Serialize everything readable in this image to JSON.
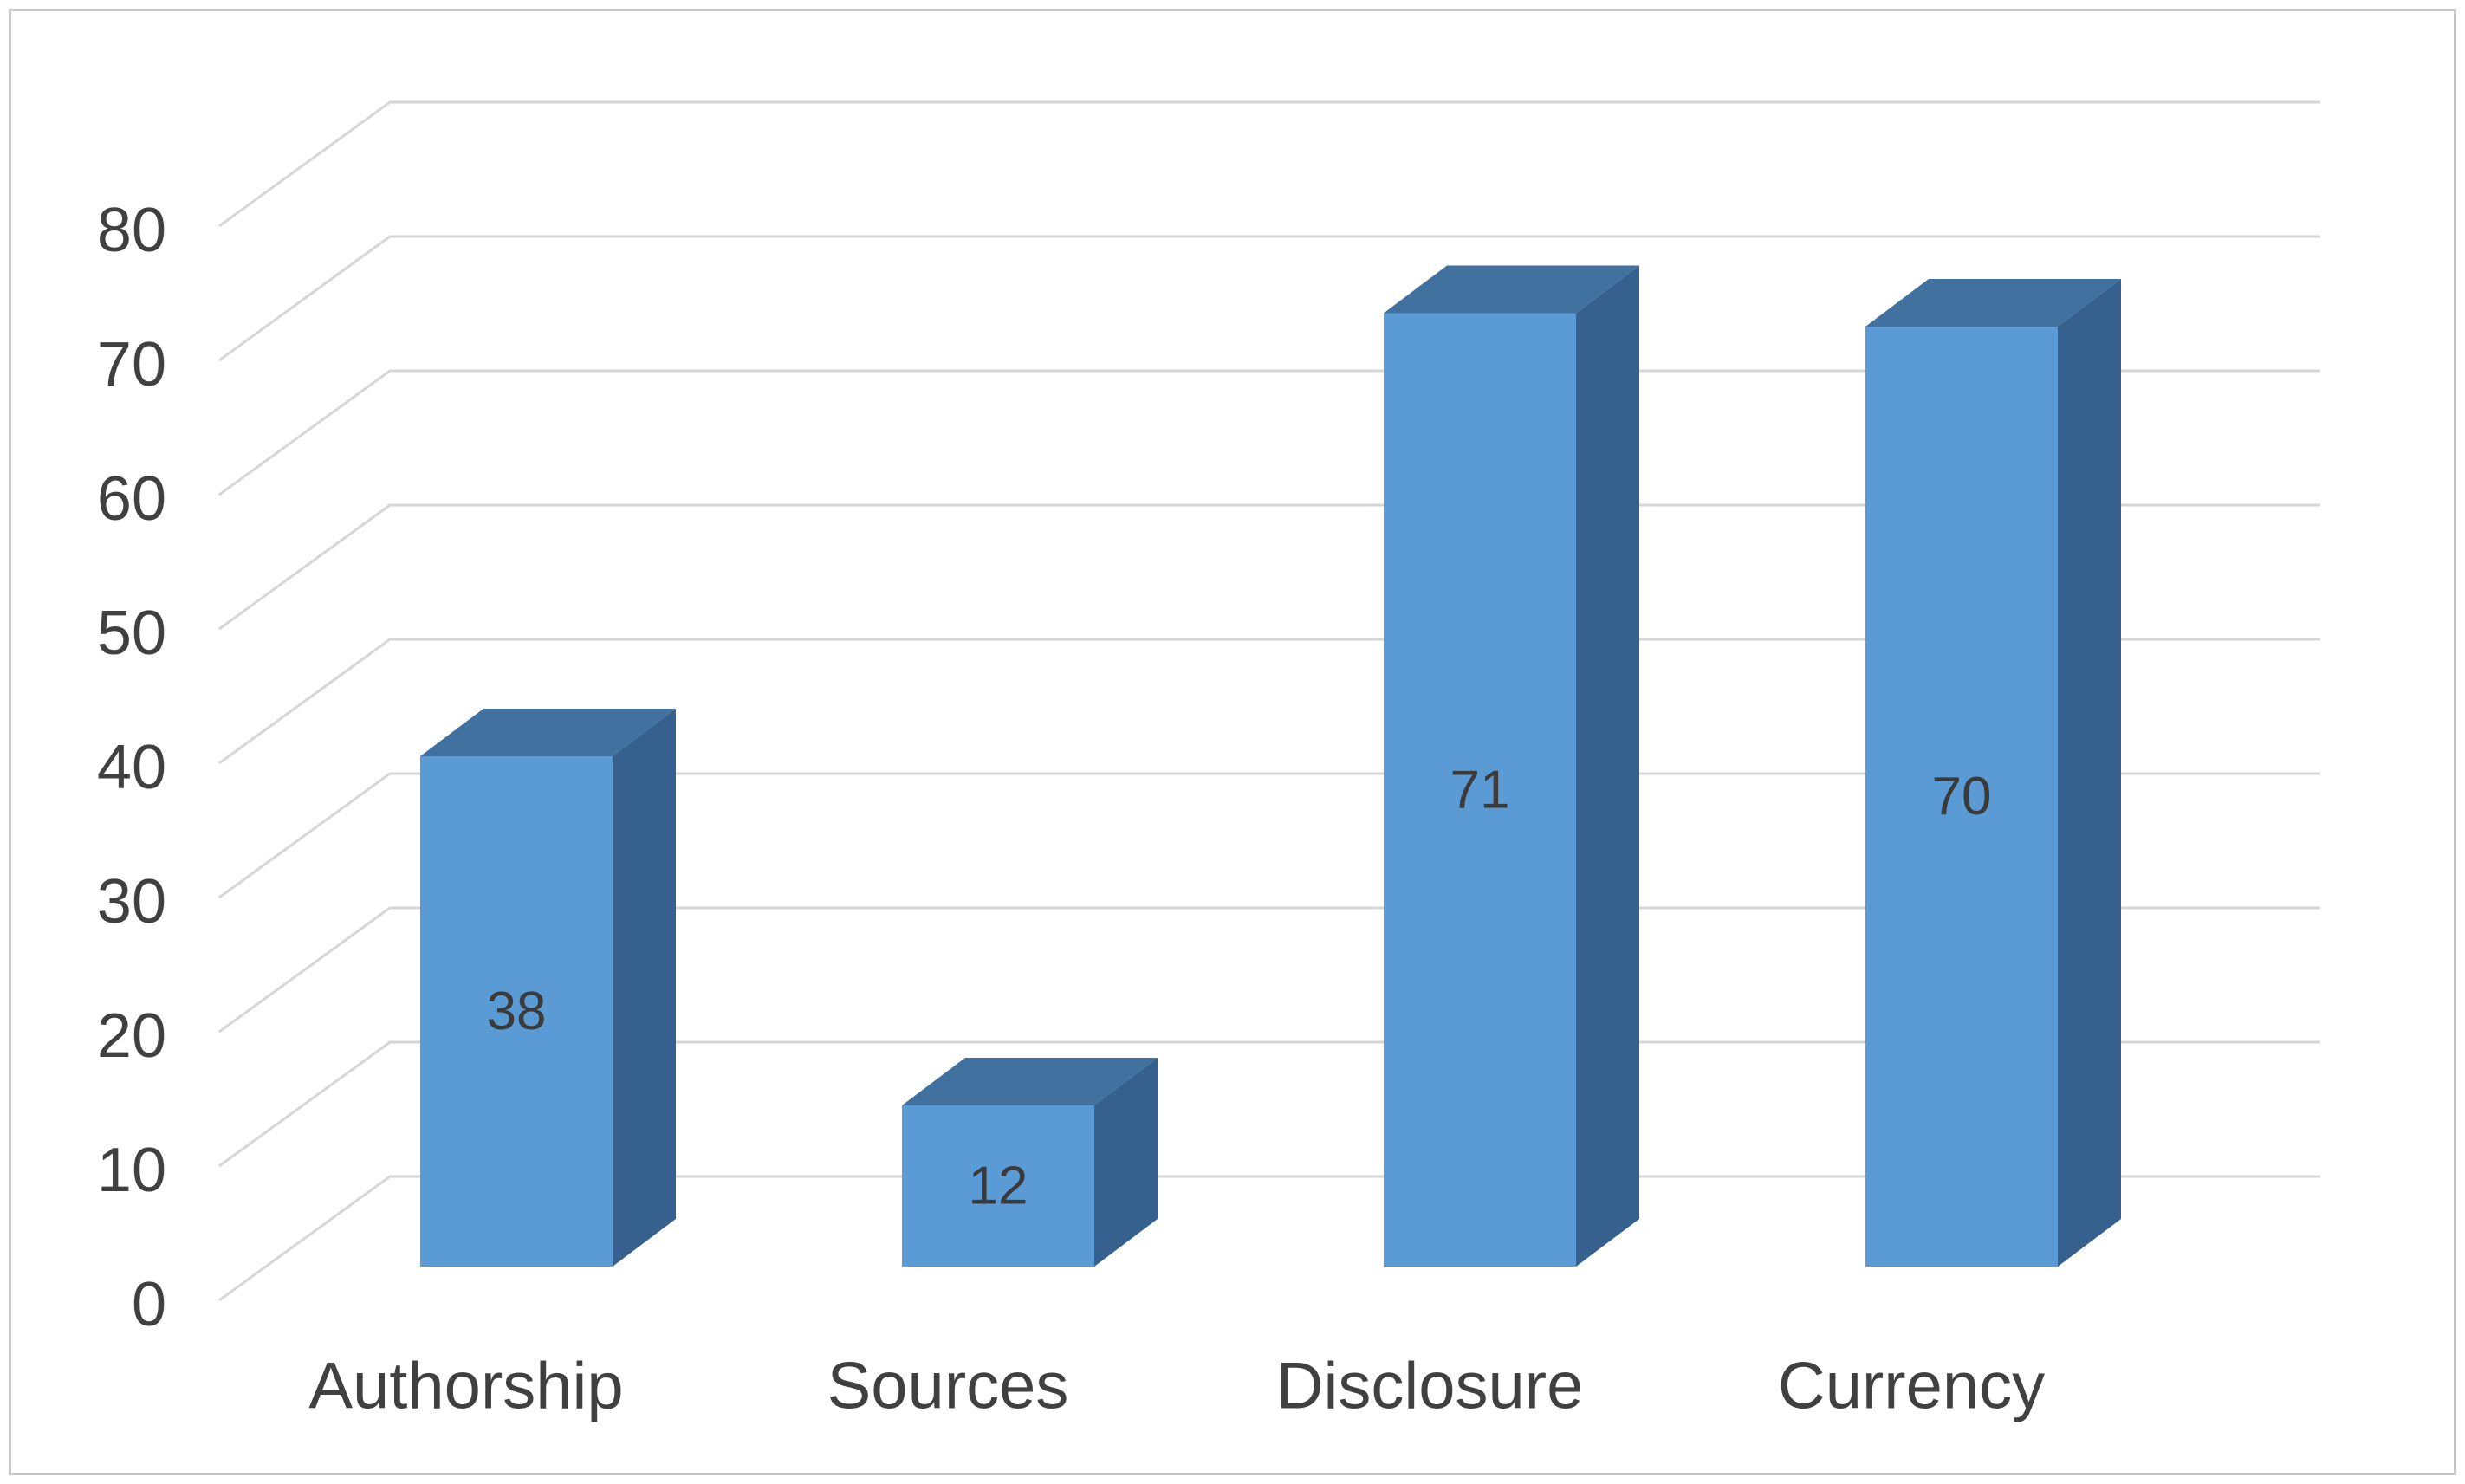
{
  "chart_data": {
    "type": "bar",
    "variant": "3d-clustered-column",
    "title": "",
    "categories": [
      "Authorship",
      "Sources",
      "Disclosure",
      "Currency"
    ],
    "values": [
      38,
      12,
      71,
      70
    ],
    "data_labels": [
      "38",
      "12",
      "71",
      "70"
    ],
    "xlabel": "",
    "ylabel": "",
    "ylim": [
      0,
      80
    ],
    "ytick_interval": 10,
    "ytick_labels": [
      "0",
      "10",
      "20",
      "30",
      "40",
      "50",
      "60",
      "70",
      "80"
    ],
    "grid": true,
    "legend": "none",
    "colors": {
      "bar_front": "#5B9BD5",
      "bar_top": "#40719F",
      "bar_side": "#36618F",
      "gridline": "#D6D6D6",
      "tick_text": "#404040",
      "category_text": "#404040",
      "data_label_text": "#3A3A3A",
      "frame_border": "#C6C6C6",
      "background": "#FFFFFF"
    }
  }
}
